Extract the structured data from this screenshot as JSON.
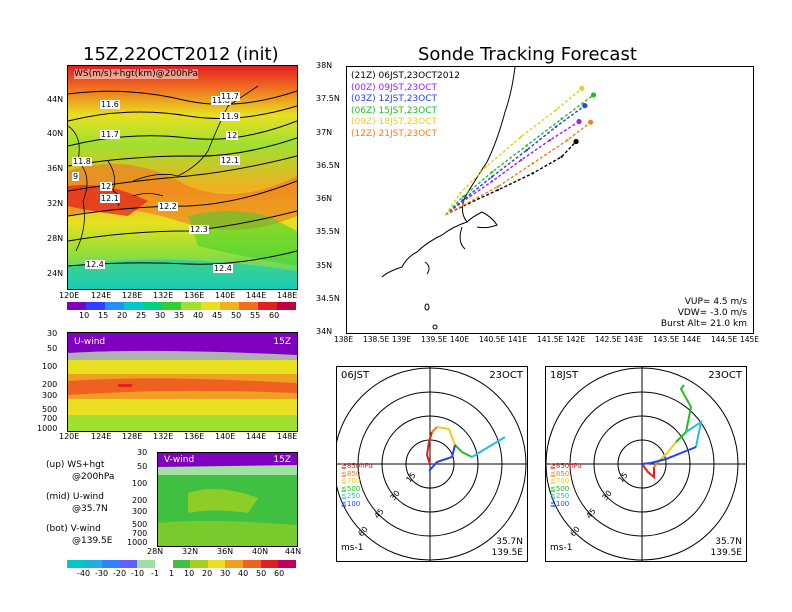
{
  "titles": {
    "left": "15Z,22OCT2012 (init)",
    "right": "Sonde Tracking Forecast"
  },
  "map_panel": {
    "label": "WS(m/s)+hgt(km)@200hPa",
    "y_ticks": [
      "44N",
      "40N",
      "36N",
      "32N",
      "28N",
      "24N"
    ],
    "x_ticks": [
      "120E",
      "124E",
      "128E",
      "132E",
      "136E",
      "140E",
      "144E",
      "148E"
    ],
    "contour_labels": [
      "11.6",
      "11.7",
      "11.8",
      "11.9",
      "12",
      "12.1",
      "12.2",
      "12.3",
      "12.4",
      "11.7",
      "11.8",
      "9",
      "12",
      "12.1",
      "12.4"
    ]
  },
  "ws_colorbar": {
    "labels": [
      "10",
      "15",
      "20",
      "25",
      "30",
      "35",
      "40",
      "45",
      "50",
      "55",
      "60"
    ],
    "colors": [
      "#8000c0",
      "#3040ff",
      "#2090ff",
      "#00c8c8",
      "#00d080",
      "#30d030",
      "#a0e030",
      "#e8e020",
      "#f0b020",
      "#f07020",
      "#e02020",
      "#c00040"
    ]
  },
  "u_panel": {
    "label": "U-wind",
    "time": "15Z",
    "y_ticks": [
      "30",
      "50",
      "100",
      "200",
      "300",
      "500",
      "700",
      "1000"
    ],
    "x_ticks": [
      "120E",
      "124E",
      "128E",
      "132E",
      "136E",
      "140E",
      "144E",
      "148E"
    ]
  },
  "v_panel": {
    "label": "V-wind",
    "time": "15Z",
    "y_ticks": [
      "30",
      "50",
      "100",
      "200",
      "300",
      "500",
      "700",
      "1000"
    ],
    "x_ticks": [
      "28N",
      "32N",
      "36N",
      "40N",
      "44N"
    ]
  },
  "legend_notes": [
    {
      "line1": "(up) WS+hgt",
      "line2": "@200hPa"
    },
    {
      "line1": "(mid) U-wind",
      "line2": "@35.7N"
    },
    {
      "line1": "(bot) V-wind",
      "line2": "@139.5E"
    }
  ],
  "uv_colorbar": {
    "labels": [
      "-40",
      "-30",
      "-20",
      "-10",
      "-1",
      "1",
      "10",
      "20",
      "30",
      "40",
      "50",
      "60"
    ],
    "colors": [
      "#00c8c8",
      "#20b0e0",
      "#3080ff",
      "#6060ff",
      "#a0e0a0",
      "#ffffff",
      "#40c040",
      "#a0d020",
      "#e8e020",
      "#f0a020",
      "#f06020",
      "#e02020",
      "#c00060"
    ]
  },
  "track_panel": {
    "y_ticks": [
      "38N",
      "37.5N",
      "37N",
      "36.5N",
      "36N",
      "35.5N",
      "35N",
      "34.5N",
      "34N"
    ],
    "x_ticks": [
      "138E",
      "138.5E",
      "139E",
      "139.5E",
      "140E",
      "140.5E",
      "141E",
      "141.5E",
      "142E",
      "142.5E",
      "143E",
      "143.5E",
      "144E",
      "144.5E",
      "145E"
    ],
    "legend": [
      {
        "code": "(21Z)",
        "text": "06JST,23OCT2012",
        "color": "#000000"
      },
      {
        "code": "(00Z)",
        "text": "09JST,23OCT",
        "color": "#a020f0"
      },
      {
        "code": "(03Z)",
        "text": "12JST,23OCT",
        "color": "#2040ff"
      },
      {
        "code": "(06Z)",
        "text": "15JST,23OCT",
        "color": "#20c020"
      },
      {
        "code": "(09Z)",
        "text": "18JST,23OCT",
        "color": "#e8d020"
      },
      {
        "code": "(12Z)",
        "text": "21JST,23OCT",
        "color": "#f08020"
      }
    ],
    "params": [
      "VUP= 4.5 m/s",
      "VDW= -3.0 m/s",
      "Burst Alt= 21.0 km"
    ]
  },
  "polar_left": {
    "time": "06JST",
    "date": "23OCT",
    "ring_labels": [
      "15",
      "30",
      "45",
      "60"
    ],
    "levels": [
      {
        "text": "≧850hPa",
        "color": "#e02020"
      },
      {
        "text": "≦850",
        "color": "#f08020"
      },
      {
        "text": "≦700",
        "color": "#e8d020"
      },
      {
        "text": "≦500",
        "color": "#20c020"
      },
      {
        "text": "≦250",
        "color": "#20c0e0"
      },
      {
        "text": "≦100",
        "color": "#2040ff"
      }
    ],
    "unit": "ms-1",
    "lat": "35.7N",
    "lon": "139.5E"
  },
  "polar_right": {
    "time": "18JST",
    "date": "23OCT",
    "ring_labels": [
      "15",
      "30",
      "45",
      "60"
    ],
    "levels": [
      {
        "text": "≧850hPa",
        "color": "#e02020"
      },
      {
        "text": "≦850",
        "color": "#f08020"
      },
      {
        "text": "≦700",
        "color": "#e8d020"
      },
      {
        "text": "≦500",
        "color": "#20c020"
      },
      {
        "text": "≦250",
        "color": "#20c0e0"
      },
      {
        "text": "≦100",
        "color": "#2040ff"
      }
    ],
    "unit": "ms-1",
    "lat": "35.7N",
    "lon": "139.5E"
  },
  "chart_data": [
    {
      "type": "line",
      "title": "Sonde Tracking Forecast",
      "xlabel": "",
      "ylabel": "",
      "xlim": [
        138,
        145
      ],
      "ylim": [
        34,
        38
      ],
      "series": [
        {
          "name": "06JST,23OCT2012",
          "color": "#000000",
          "x": [
            139.7,
            140.1,
            140.6,
            141.2,
            141.7,
            141.95
          ],
          "y": [
            35.78,
            35.95,
            36.15,
            36.4,
            36.65,
            36.88
          ]
        },
        {
          "name": "09JST,23OCT",
          "color": "#a020f0",
          "x": [
            139.7,
            140.0,
            140.5,
            141.0,
            141.5,
            142.0
          ],
          "y": [
            35.78,
            35.98,
            36.28,
            36.6,
            36.9,
            37.18
          ]
        },
        {
          "name": "12JST,23OCT",
          "color": "#2040ff",
          "x": [
            139.7,
            140.0,
            140.5,
            141.1,
            141.6,
            142.1
          ],
          "y": [
            35.78,
            36.0,
            36.35,
            36.75,
            37.1,
            37.42
          ]
        },
        {
          "name": "15JST,23OCT",
          "color": "#20c020",
          "x": [
            139.7,
            140.0,
            140.5,
            141.1,
            141.7,
            142.25
          ],
          "y": [
            35.78,
            36.05,
            36.42,
            36.82,
            37.22,
            37.58
          ]
        },
        {
          "name": "18JST,23OCT",
          "color": "#e8d020",
          "x": [
            139.7,
            139.95,
            140.4,
            141.0,
            141.6,
            142.05
          ],
          "y": [
            35.78,
            36.1,
            36.5,
            36.95,
            37.35,
            37.68
          ]
        },
        {
          "name": "21JST,23OCT",
          "color": "#f08020",
          "x": [
            139.7,
            140.0,
            140.6,
            141.2,
            141.8,
            142.2
          ],
          "y": [
            35.78,
            35.92,
            36.2,
            36.55,
            36.9,
            37.17
          ]
        }
      ]
    }
  ]
}
